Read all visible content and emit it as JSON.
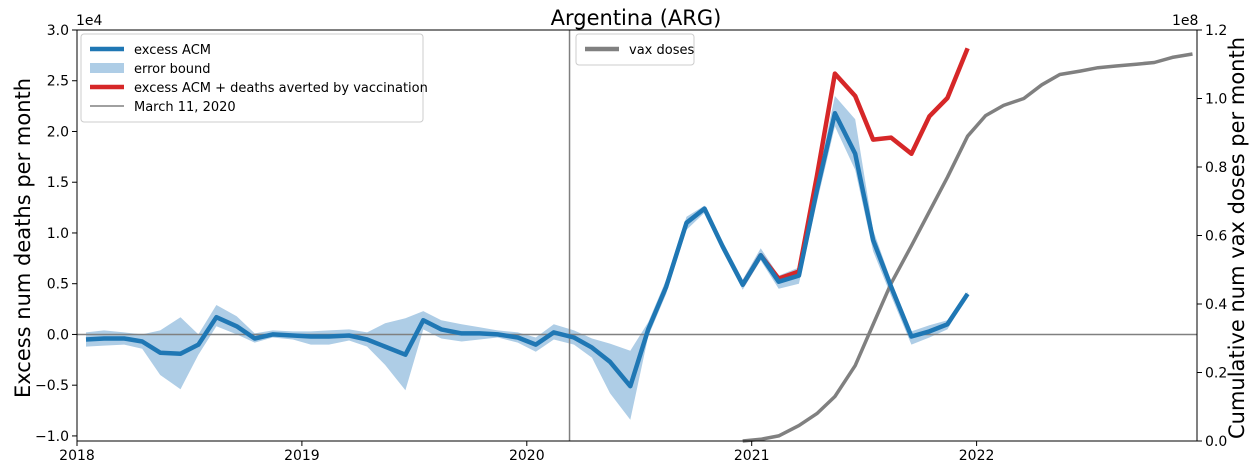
{
  "chart_data": {
    "type": "line",
    "title": "Argentina (ARG)",
    "xlabel": "",
    "ylabel_left": "Excess num deaths per month",
    "ylabel_right": "Cumulative num vax doses per month",
    "left_axis_multiplier": "1e4",
    "right_axis_multiplier": "1e8",
    "xlim": [
      2018.0,
      2022.98
    ],
    "ylim_left": [
      -1.05,
      3.0
    ],
    "ylim_right": [
      0.0,
      1.2
    ],
    "x_ticks": [
      2018,
      2019,
      2020,
      2021,
      2022
    ],
    "x_tick_labels": [
      "2018",
      "2019",
      "2020",
      "2021",
      "2022"
    ],
    "y_ticks_left": [
      -1.0,
      -0.5,
      0.0,
      0.5,
      1.0,
      1.5,
      2.0,
      2.5,
      3.0
    ],
    "y_tick_labels_left": [
      "−1.0",
      "−0.5",
      "0.0",
      "0.5",
      "1.0",
      "1.5",
      "2.0",
      "2.5",
      "3.0"
    ],
    "y_ticks_right": [
      0.0,
      0.2,
      0.4,
      0.6,
      0.8,
      1.0,
      1.2
    ],
    "y_tick_labels_right": [
      "0.0",
      "0.2",
      "0.4",
      "0.6",
      "0.8",
      "1.0",
      "1.2"
    ],
    "vertical_marker": {
      "label": "March 11, 2020",
      "x": 2020.19
    },
    "horizontal_zero_line": true,
    "colors": {
      "excess": "#1f77b4",
      "band": "#aecde6",
      "averted": "#d62728",
      "vax": "#808080",
      "ref": "#808080"
    },
    "legend_left": {
      "placement": "upper-left",
      "entries": [
        {
          "label": "excess ACM",
          "style": "line",
          "color": "#1f77b4"
        },
        {
          "label": "error bound",
          "style": "patch",
          "color": "#aecde6"
        },
        {
          "label": "excess ACM + deaths averted by vaccination",
          "style": "line",
          "color": "#d62728"
        },
        {
          "label": "March 11, 2020",
          "style": "thin-line",
          "color": "#808080"
        }
      ]
    },
    "legend_right": {
      "placement": "upper-center",
      "entries": [
        {
          "label": "vax doses",
          "style": "line",
          "color": "#808080"
        }
      ]
    },
    "series": [
      {
        "name": "excess ACM",
        "axis": "left",
        "x": [
          2018.04,
          2018.12,
          2018.21,
          2018.29,
          2018.37,
          2018.46,
          2018.54,
          2018.62,
          2018.71,
          2018.79,
          2018.87,
          2018.96,
          2019.04,
          2019.12,
          2019.21,
          2019.29,
          2019.37,
          2019.46,
          2019.54,
          2019.62,
          2019.71,
          2019.79,
          2019.87,
          2019.96,
          2020.04,
          2020.12,
          2020.21,
          2020.29,
          2020.37,
          2020.46,
          2020.54,
          2020.62,
          2020.71,
          2020.79,
          2020.87,
          2020.96,
          2021.04,
          2021.12,
          2021.21,
          2021.29,
          2021.37,
          2021.46,
          2021.54,
          2021.62,
          2021.71,
          2021.79,
          2021.87,
          2021.96
        ],
        "y": [
          -0.05,
          -0.04,
          -0.04,
          -0.07,
          -0.18,
          -0.19,
          -0.1,
          0.17,
          0.08,
          -0.04,
          0.0,
          -0.01,
          -0.02,
          -0.02,
          -0.01,
          -0.05,
          -0.12,
          -0.2,
          0.14,
          0.05,
          0.01,
          0.01,
          0.0,
          -0.03,
          -0.1,
          0.02,
          -0.03,
          -0.13,
          -0.27,
          -0.51,
          0.05,
          0.47,
          1.1,
          1.24,
          0.87,
          0.49,
          0.78,
          0.52,
          0.58,
          1.42,
          2.18,
          1.78,
          0.93,
          0.47,
          -0.02,
          0.03,
          0.1,
          0.4
        ]
      },
      {
        "name": "error bound",
        "axis": "left",
        "x": [
          2018.04,
          2018.12,
          2018.21,
          2018.29,
          2018.37,
          2018.46,
          2018.54,
          2018.62,
          2018.71,
          2018.79,
          2018.87,
          2018.96,
          2019.04,
          2019.12,
          2019.21,
          2019.29,
          2019.37,
          2019.46,
          2019.54,
          2019.62,
          2019.71,
          2019.79,
          2019.87,
          2019.96,
          2020.04,
          2020.12,
          2020.21,
          2020.29,
          2020.37,
          2020.46,
          2020.54,
          2020.62,
          2020.71,
          2020.79,
          2020.87,
          2020.96,
          2021.04,
          2021.12,
          2021.21,
          2021.29,
          2021.37,
          2021.46,
          2021.54,
          2021.62,
          2021.71,
          2021.79,
          2021.87,
          2021.96
        ],
        "lower": [
          -0.12,
          -0.11,
          -0.1,
          -0.14,
          -0.4,
          -0.54,
          -0.2,
          0.08,
          0.0,
          -0.08,
          -0.03,
          -0.05,
          -0.1,
          -0.1,
          -0.06,
          -0.12,
          -0.3,
          -0.55,
          0.05,
          -0.04,
          -0.07,
          -0.05,
          -0.03,
          -0.08,
          -0.17,
          -0.05,
          -0.1,
          -0.23,
          -0.58,
          -0.84,
          -0.02,
          0.4,
          1.03,
          1.2,
          0.82,
          0.44,
          0.73,
          0.45,
          0.5,
          1.3,
          2.05,
          1.62,
          0.82,
          0.38,
          -0.1,
          -0.03,
          0.05,
          0.38
        ],
        "upper": [
          0.02,
          0.04,
          0.02,
          0.0,
          0.04,
          0.17,
          0.0,
          0.29,
          0.18,
          0.01,
          0.04,
          0.03,
          0.03,
          0.04,
          0.05,
          0.02,
          0.11,
          0.16,
          0.23,
          0.14,
          0.1,
          0.07,
          0.04,
          0.02,
          -0.03,
          0.1,
          0.04,
          -0.04,
          -0.09,
          -0.16,
          0.12,
          0.54,
          1.16,
          1.27,
          0.92,
          0.54,
          0.85,
          0.58,
          0.66,
          1.5,
          2.35,
          2.12,
          1.03,
          0.53,
          0.03,
          0.09,
          0.14,
          0.42
        ]
      },
      {
        "name": "excess ACM + deaths averted by vaccination",
        "axis": "left",
        "x": [
          2020.96,
          2021.04,
          2021.12,
          2021.21,
          2021.29,
          2021.37,
          2021.46,
          2021.54,
          2021.62,
          2021.71,
          2021.79,
          2021.87,
          2021.96
        ],
        "y": [
          0.49,
          0.78,
          0.55,
          0.62,
          1.56,
          2.57,
          2.35,
          1.92,
          1.94,
          1.78,
          2.15,
          2.33,
          2.82
        ]
      },
      {
        "name": "vax doses",
        "axis": "right",
        "x": [
          2020.96,
          2021.04,
          2021.12,
          2021.21,
          2021.29,
          2021.37,
          2021.46,
          2021.54,
          2021.62,
          2021.71,
          2021.79,
          2021.87,
          2021.96,
          2022.04,
          2022.12,
          2022.21,
          2022.29,
          2022.37,
          2022.46,
          2022.54,
          2022.62,
          2022.71,
          2022.79,
          2022.87,
          2022.96
        ],
        "y": [
          0.0,
          0.005,
          0.015,
          0.045,
          0.08,
          0.13,
          0.22,
          0.34,
          0.46,
          0.57,
          0.67,
          0.77,
          0.89,
          0.95,
          0.98,
          1.0,
          1.04,
          1.07,
          1.08,
          1.09,
          1.095,
          1.1,
          1.105,
          1.12,
          1.13
        ]
      }
    ]
  }
}
